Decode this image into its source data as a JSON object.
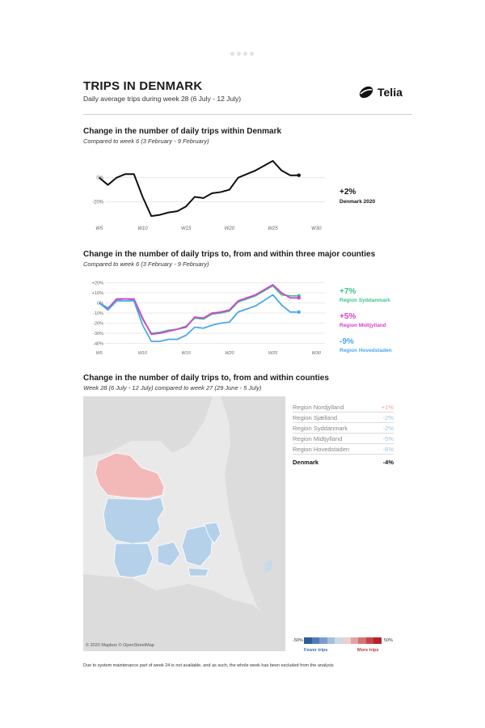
{
  "header": {
    "title": "TRIPS IN DENMARK",
    "subtitle": "Daily average trips during week 28 (6 July - 12 July)",
    "logo_text": "Telia"
  },
  "section1": {
    "title": "Change in the number of daily trips within Denmark",
    "subtitle": "Compared to week 6 (3 February - 9 February)",
    "annotation_value": "+2%",
    "annotation_label": "Denmark 2020"
  },
  "section2": {
    "title": "Change in the number of daily trips to, from and within three major counties",
    "subtitle": "Compared to week 6 (3 February - 9 February)",
    "annotations": [
      {
        "value": "+7%",
        "label": "Region Syddanmark",
        "color": "#3cc68a"
      },
      {
        "value": "+5%",
        "label": "Region Midtjylland",
        "color": "#d63fd0"
      },
      {
        "value": "-9%",
        "label": "Region Hovedstaden",
        "color": "#4aa8ee"
      }
    ]
  },
  "section3": {
    "title": "Change in the number of daily trips to, from and within counties",
    "subtitle": "Week 28 (6 July - 12 July) compared to week 27 (29 June - 5 July)",
    "map_attribution": "© 2020 Mapbox © OpenStreetMap",
    "regions": [
      {
        "name": "Region Nordjylland",
        "value": "+1%",
        "color": "#f0a3a3"
      },
      {
        "name": "Region Sjælland",
        "value": "-2%",
        "color": "#9cc3e6"
      },
      {
        "name": "Region Syddanmark",
        "value": "-2%",
        "color": "#9cc3e6"
      },
      {
        "name": "Region Midtjylland",
        "value": "-5%",
        "color": "#9cc3e6"
      },
      {
        "name": "Region Hovedstaden",
        "value": "-6%",
        "color": "#9cc3e6"
      }
    ],
    "total": {
      "name": "Denmark",
      "value": "-4%"
    },
    "legend": {
      "min_label": "-50%",
      "max_label": "50%",
      "fewer_label": "Fewer trips",
      "more_label": "More trips",
      "fewer_color": "#3b6ea8",
      "more_color": "#c0392b"
    }
  },
  "footnote": "Due to system maintenance part of week 24 is not available, and as such, the whole week has been excluded from the analysis",
  "chart_data": [
    {
      "type": "line",
      "title": "Change in the number of daily trips within Denmark",
      "subtitle": "Compared to week 6 (3 February - 9 February)",
      "x": [
        5,
        6,
        7,
        8,
        9,
        10,
        11,
        12,
        13,
        14,
        15,
        16,
        17,
        18,
        19,
        20,
        21,
        22,
        23,
        25,
        26,
        27,
        28
      ],
      "x_ticks": [
        "W5",
        "W10",
        "W15",
        "W20",
        "W25",
        "W30"
      ],
      "x_tick_values": [
        5,
        10,
        15,
        20,
        25,
        30
      ],
      "y_ticks": [
        "0%",
        "-20%"
      ],
      "y_tick_values": [
        0,
        -20
      ],
      "ylim": [
        -36,
        18
      ],
      "xlim": [
        4,
        31
      ],
      "series": [
        {
          "name": "Denmark 2020",
          "color": "#111111",
          "values": [
            0,
            -6,
            0,
            3,
            3,
            -16,
            -32,
            -31,
            -29,
            -28,
            -24,
            -16,
            -17,
            -13,
            -12,
            -10,
            0,
            3,
            6,
            14,
            6,
            2,
            2
          ]
        }
      ]
    },
    {
      "type": "line",
      "title": "Change in the number of daily trips to, from and within three major counties",
      "subtitle": "Compared to week 6 (3 February - 9 February)",
      "x": [
        5,
        6,
        7,
        8,
        9,
        10,
        11,
        12,
        13,
        14,
        15,
        16,
        17,
        18,
        19,
        20,
        21,
        22,
        23,
        25,
        26,
        27,
        28
      ],
      "x_ticks": [
        "W5",
        "W10",
        "W15",
        "W20",
        "W25",
        "W30"
      ],
      "x_tick_values": [
        5,
        10,
        15,
        20,
        25,
        30
      ],
      "y_ticks": [
        "+20%",
        "+10%",
        "0%",
        "-10%",
        "-20%",
        "-30%",
        "-40%"
      ],
      "y_tick_values": [
        20,
        10,
        0,
        -10,
        -20,
        -30,
        -40
      ],
      "ylim": [
        -42,
        22
      ],
      "xlim": [
        4,
        31
      ],
      "series": [
        {
          "name": "Region Syddanmark",
          "color": "#3cc68a",
          "values": [
            0,
            -5,
            3,
            4,
            3,
            -16,
            -30,
            -29,
            -27,
            -26,
            -23,
            -15,
            -16,
            -11,
            -10,
            -8,
            1,
            4,
            7,
            17,
            8,
            7,
            7
          ]
        },
        {
          "name": "Region Midtjylland",
          "color": "#d63fd0",
          "values": [
            0,
            -6,
            4,
            4,
            4,
            -15,
            -31,
            -30,
            -28,
            -26,
            -24,
            -14,
            -15,
            -10,
            -9,
            -7,
            2,
            5,
            8,
            18,
            10,
            5,
            5
          ]
        },
        {
          "name": "Region Hovedstaden",
          "color": "#4aa8ee",
          "values": [
            0,
            -7,
            2,
            2,
            2,
            -22,
            -38,
            -38,
            -36,
            -36,
            -32,
            -24,
            -25,
            -22,
            -20,
            -19,
            -9,
            -6,
            -3,
            8,
            -2,
            -9,
            -9
          ]
        }
      ]
    }
  ]
}
